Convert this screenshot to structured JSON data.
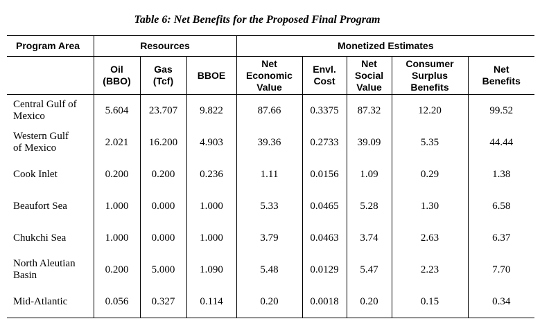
{
  "caption": "Table 6:  Net Benefits for the Proposed Final Program",
  "header": {
    "program_area": "Program Area",
    "resources": "Resources",
    "monetized": "Monetized Estimates",
    "columns": {
      "oil": [
        "Oil",
        "(BBO)"
      ],
      "gas": [
        "Gas",
        "(Tcf)"
      ],
      "bboe": [
        "BBOE"
      ],
      "nev": [
        "Net",
        "Economic",
        "Value"
      ],
      "envl": [
        "Envl.",
        "Cost"
      ],
      "nsv": [
        "Net",
        "Social",
        "Value"
      ],
      "csb": [
        "Consumer",
        "Surplus",
        "Benefits"
      ],
      "nb": [
        "Net",
        "Benefits"
      ]
    }
  },
  "rows": [
    {
      "area": [
        "Central Gulf of",
        "Mexico"
      ],
      "oil": "5.604",
      "gas": "23.707",
      "bboe": "9.822",
      "nev": "87.66",
      "envl": "0.3375",
      "nsv": "87.32",
      "csb": "12.20",
      "nb": "99.52"
    },
    {
      "area": [
        "Western Gulf",
        "of Mexico"
      ],
      "oil": "2.021",
      "gas": "16.200",
      "bboe": "4.903",
      "nev": "39.36",
      "envl": "0.2733",
      "nsv": "39.09",
      "csb": "5.35",
      "nb": "44.44"
    },
    {
      "area": [
        "Cook Inlet"
      ],
      "oil": "0.200",
      "gas": "0.200",
      "bboe": "0.236",
      "nev": "1.11",
      "envl": "0.0156",
      "nsv": "1.09",
      "csb": "0.29",
      "nb": "1.38"
    },
    {
      "area": [
        "Beaufort Sea"
      ],
      "oil": "1.000",
      "gas": "0.000",
      "bboe": "1.000",
      "nev": "5.33",
      "envl": "0.0465",
      "nsv": "5.28",
      "csb": "1.30",
      "nb": "6.58"
    },
    {
      "area": [
        "Chukchi Sea"
      ],
      "oil": "1.000",
      "gas": "0.000",
      "bboe": "1.000",
      "nev": "3.79",
      "envl": "0.0463",
      "nsv": "3.74",
      "csb": "2.63",
      "nb": "6.37"
    },
    {
      "area": [
        "North Aleutian",
        "Basin"
      ],
      "oil": "0.200",
      "gas": "5.000",
      "bboe": "1.090",
      "nev": "5.48",
      "envl": "0.0129",
      "nsv": "5.47",
      "csb": "2.23",
      "nb": "7.70"
    },
    {
      "area": [
        "Mid-Atlantic"
      ],
      "oil": "0.056",
      "gas": "0.327",
      "bboe": "0.114",
      "nev": "0.20",
      "envl": "0.0018",
      "nsv": "0.20",
      "csb": "0.15",
      "nb": "0.34"
    }
  ]
}
